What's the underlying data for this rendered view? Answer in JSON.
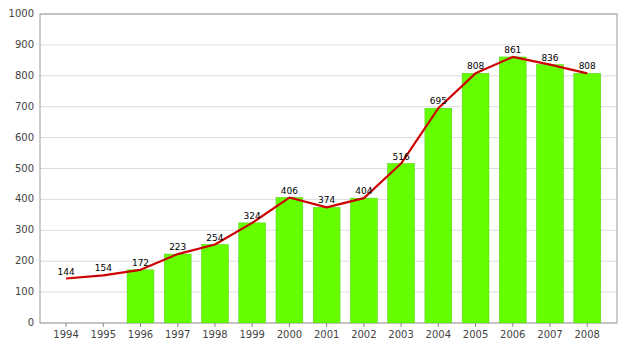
{
  "chart_data": {
    "type": "bar",
    "x": [
      1994,
      1995,
      1996,
      1997,
      1998,
      1999,
      2000,
      2001,
      2002,
      2003,
      2004,
      2005,
      2006,
      2007,
      2008
    ],
    "series": [
      {
        "type": "bar",
        "color": "#66ff00",
        "data_labels": true,
        "values": [
          null,
          null,
          172,
          223,
          254,
          324,
          406,
          374,
          404,
          516,
          695,
          808,
          861,
          836,
          808
        ]
      },
      {
        "type": "line",
        "color": "#cc0000",
        "data_labels": true,
        "values": [
          144,
          154,
          172,
          223,
          254,
          324,
          406,
          374,
          404,
          516,
          695,
          808,
          861,
          836,
          808
        ],
        "value_labels": [
          "144",
          "154",
          null,
          null,
          null,
          null,
          null,
          null,
          null,
          null,
          null,
          null,
          null,
          null,
          null
        ]
      }
    ],
    "xlim": [
      1993.3,
      2008.8
    ],
    "xticks": [
      1994,
      1995,
      1996,
      1997,
      1998,
      1999,
      2000,
      2001,
      2002,
      2003,
      2004,
      2005,
      2006,
      2007,
      2008
    ],
    "ylim": [
      0,
      1000
    ],
    "yticks": [
      0,
      100,
      200,
      300,
      400,
      500,
      600,
      700,
      800,
      900,
      1000
    ],
    "grid": true
  }
}
